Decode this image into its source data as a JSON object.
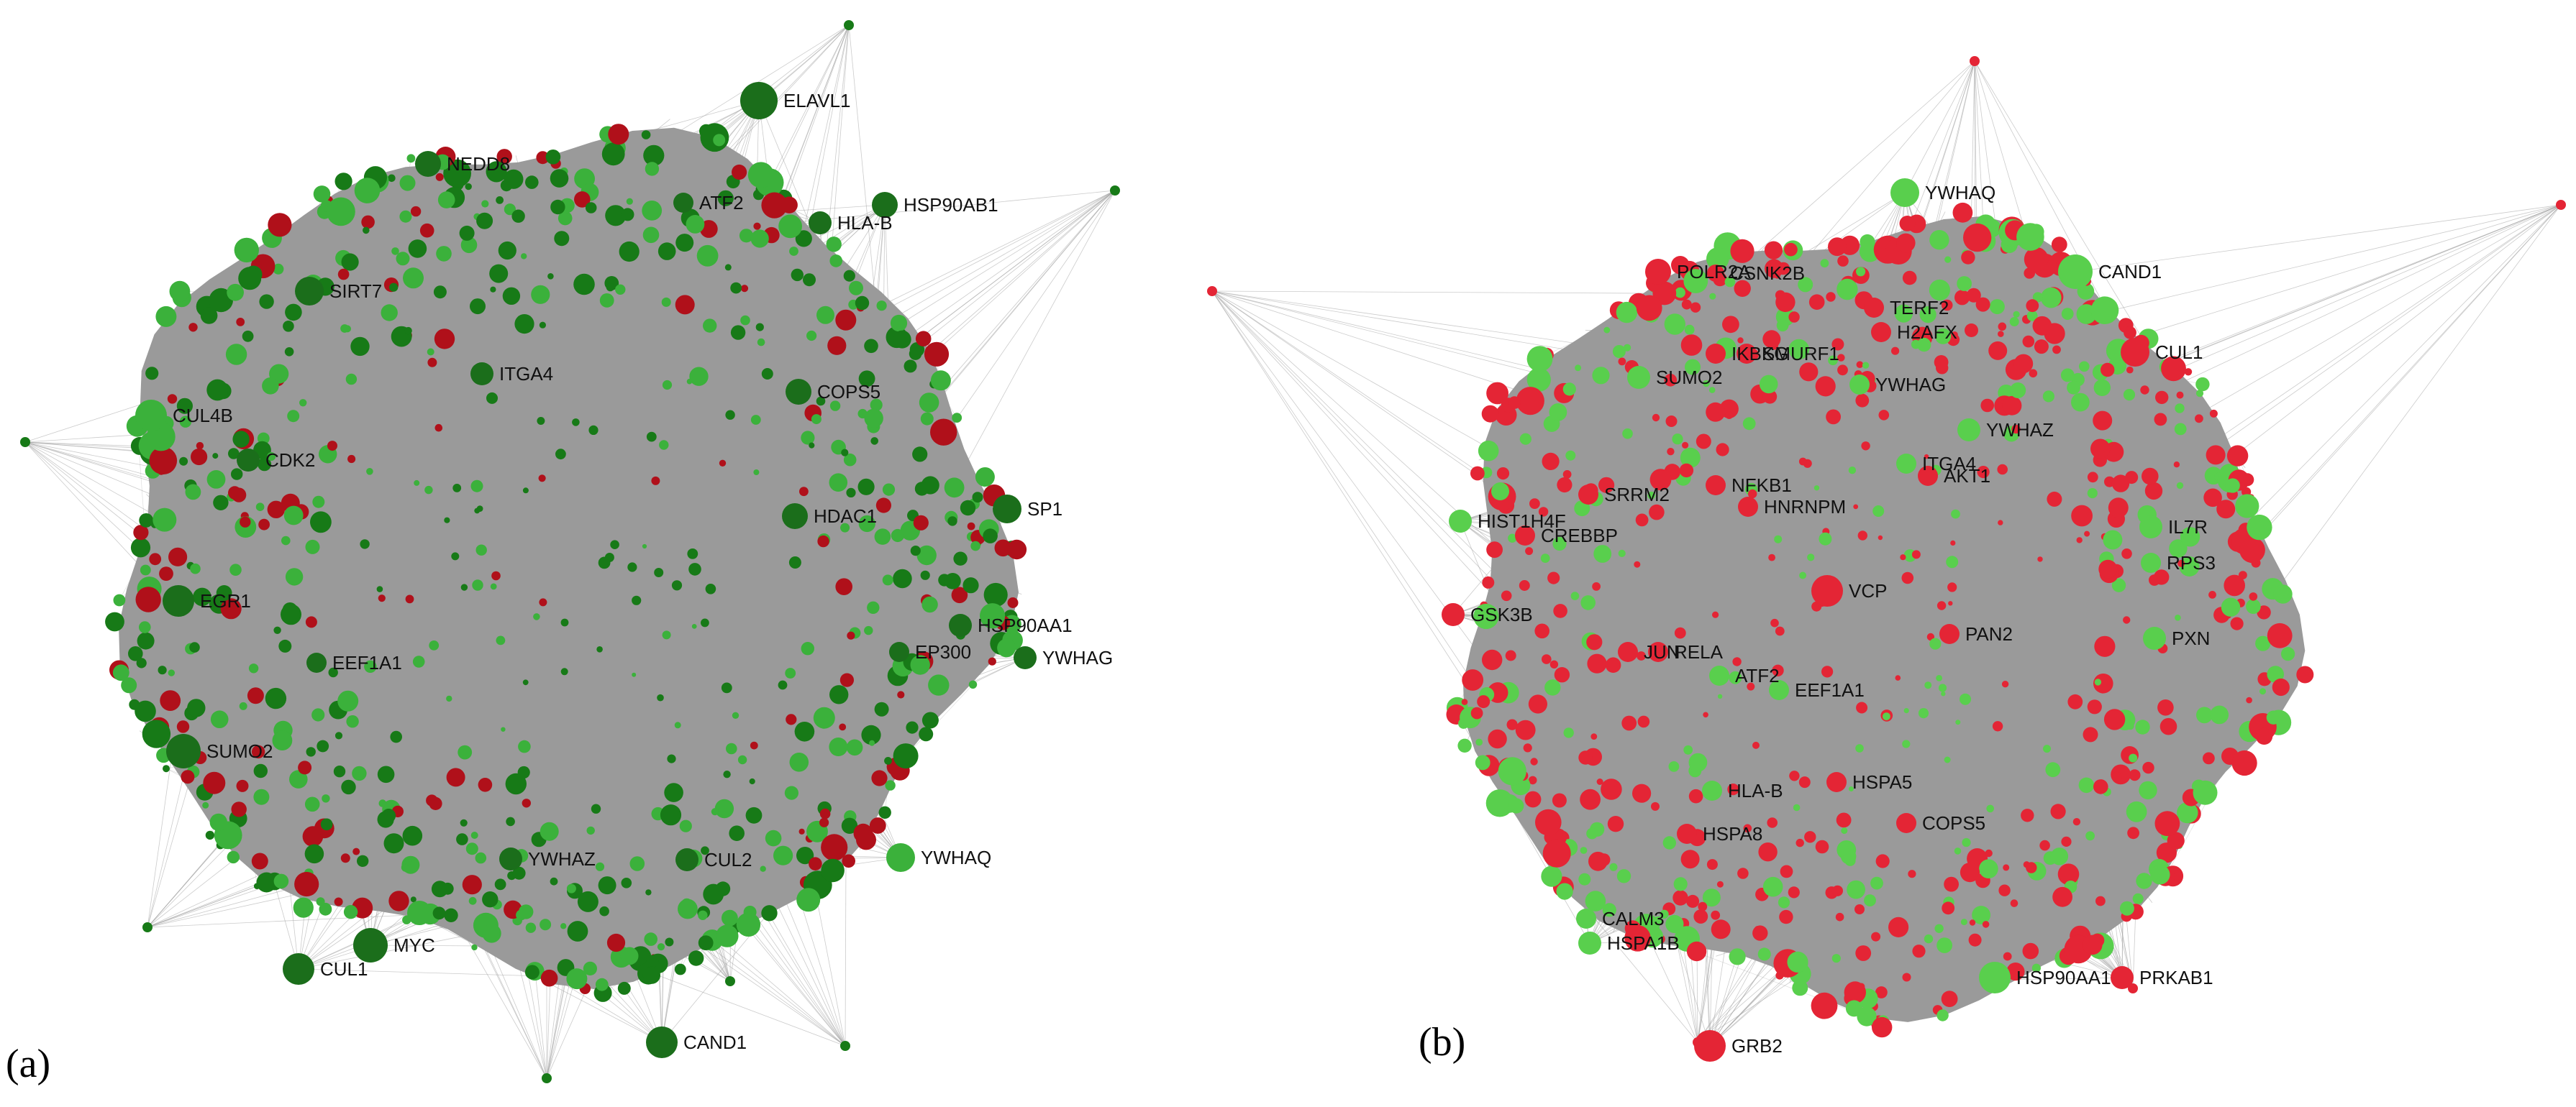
{
  "colors": {
    "edge": "#a0a0a0",
    "core": "#9a9a9a",
    "a_green_dark": "#177a17",
    "a_green_light": "#3bb13b",
    "a_red": "#b0101a",
    "b_red": "#e42535",
    "b_green": "#59cf4d",
    "label": "#111111"
  },
  "panels": [
    {
      "letter": "(a)",
      "labels": [
        "ELAVL1",
        "HSP90AB1",
        "NEDD8",
        "ATF2",
        "HLA-B",
        "SIRT7",
        "ITGA4",
        "COPS5",
        "CUL4B",
        "CDK2",
        "SP1",
        "HDAC1",
        "EGR1",
        "HSP90AA1",
        "EP300",
        "YWHAG",
        "EEF1A1",
        "SUMO2",
        "YWHAQ",
        "YWHAZ",
        "CUL2",
        "MYC",
        "CUL1",
        "CAND1"
      ]
    },
    {
      "letter": "(b)",
      "labels": [
        "YWHAQ",
        "CSNK2B",
        "POLR2A",
        "CAND1",
        "TERF2",
        "H2AFX",
        "CUL1",
        "IKBKG",
        "SMURF1",
        "SUMO2",
        "YWHAG",
        "YWHAZ",
        "ITGA4",
        "AKT1",
        "SRRM2",
        "NFKB1",
        "HNRNPM",
        "HIST1H4F",
        "CREBBP",
        "IL7R",
        "RPS3",
        "VCP",
        "GSK3B",
        "PAN2",
        "PXN",
        "JUN",
        "RELA",
        "ATF2",
        "EEF1A1",
        "HSPA5",
        "HLA-B",
        "COPS5",
        "HSPA8",
        "CALM3",
        "HSPA1B",
        "HSP90AA1",
        "PRKAB1",
        "GRB2"
      ]
    }
  ]
}
